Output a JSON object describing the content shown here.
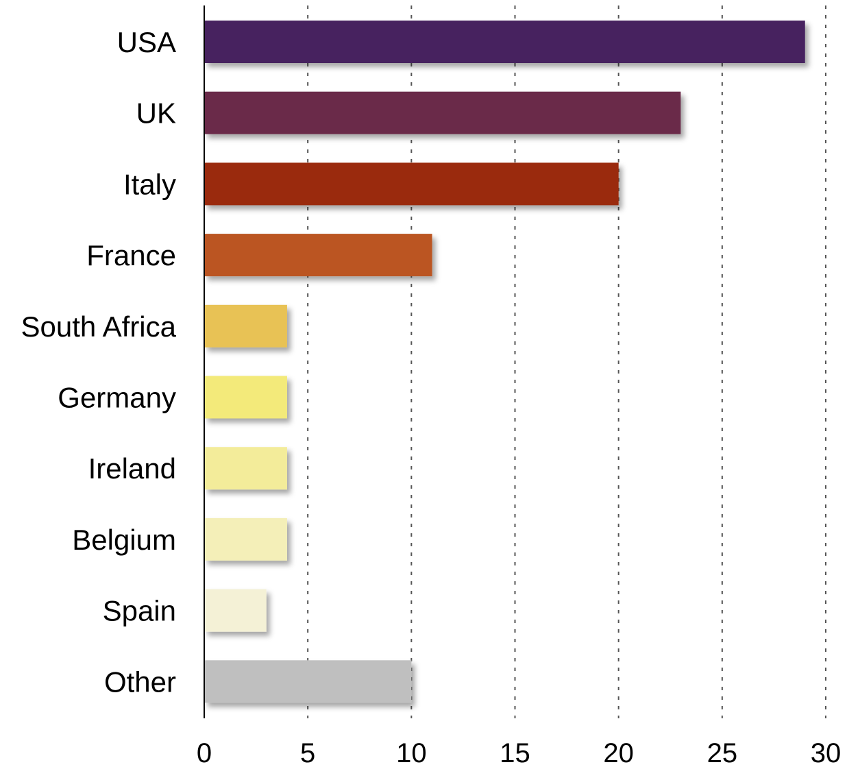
{
  "chart_data": {
    "type": "bar",
    "orientation": "horizontal",
    "title": "",
    "xlabel": "",
    "ylabel": "",
    "categories": [
      "USA",
      "UK",
      "Italy",
      "France",
      "South Africa",
      "Germany",
      "Ireland",
      "Belgium",
      "Spain",
      "Other"
    ],
    "values": [
      29,
      23,
      20,
      11,
      4,
      4,
      4,
      4,
      3,
      10
    ],
    "colors": [
      "#46215f",
      "#6b2b48",
      "#9a2a10",
      "#bb5420",
      "#e8c255",
      "#f3ea7a",
      "#f3ec9a",
      "#f4efb8",
      "#f4f1d6",
      "#bfbfbf"
    ],
    "xlim": [
      0,
      30
    ],
    "xticks": [
      0,
      5,
      10,
      15,
      20,
      25,
      30
    ],
    "grid": "vertical-dotted",
    "legend": "none"
  }
}
